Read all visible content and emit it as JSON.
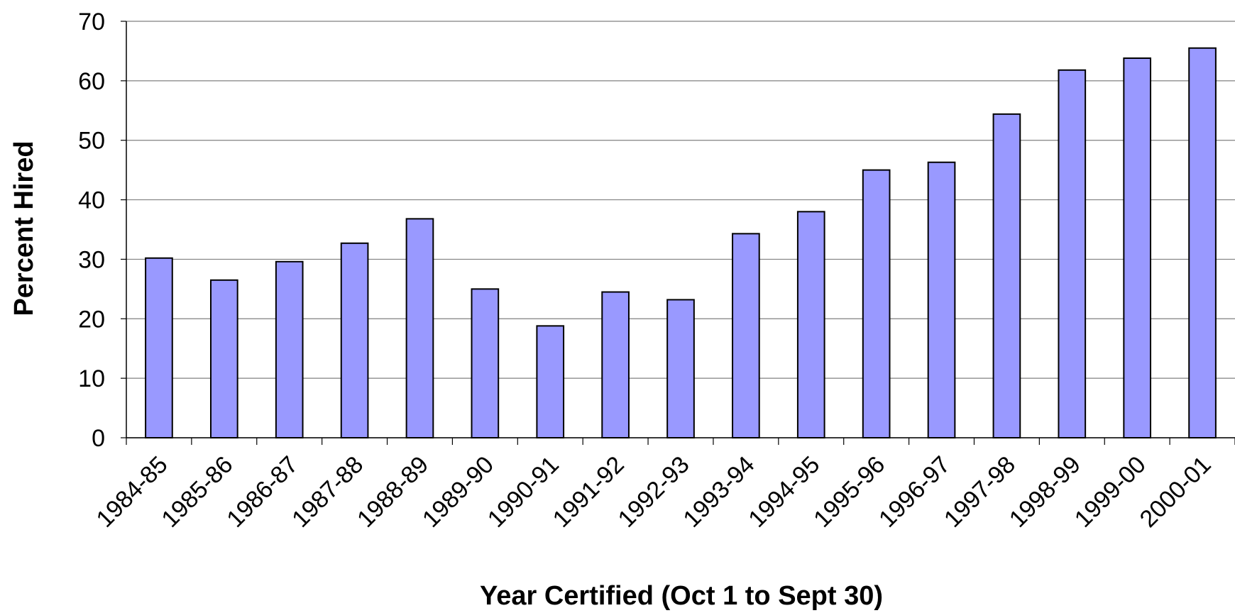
{
  "chart_data": {
    "type": "bar",
    "x_label": "Year Certified (Oct 1 to Sept 30)",
    "y_label": "Percent Hired",
    "categories": [
      "1984-85",
      "1985-86",
      "1986-87",
      "1987-88",
      "1988-89",
      "1989-90",
      "1990-91",
      "1991-92",
      "1992-93",
      "1993-94",
      "1994-95",
      "1995-96",
      "1996-97",
      "1997-98",
      "1998-99",
      "1999-00",
      "2000-01"
    ],
    "values": [
      30.2,
      26.5,
      29.6,
      32.7,
      36.8,
      25.0,
      18.8,
      24.5,
      23.2,
      34.3,
      38.0,
      45.0,
      46.3,
      54.4,
      61.8,
      63.8,
      65.5
    ],
    "color": "#9999ff",
    "ylim": [
      0,
      70
    ],
    "yticks": [
      0,
      10,
      20,
      30,
      40,
      50,
      60,
      70
    ],
    "grid": true
  }
}
